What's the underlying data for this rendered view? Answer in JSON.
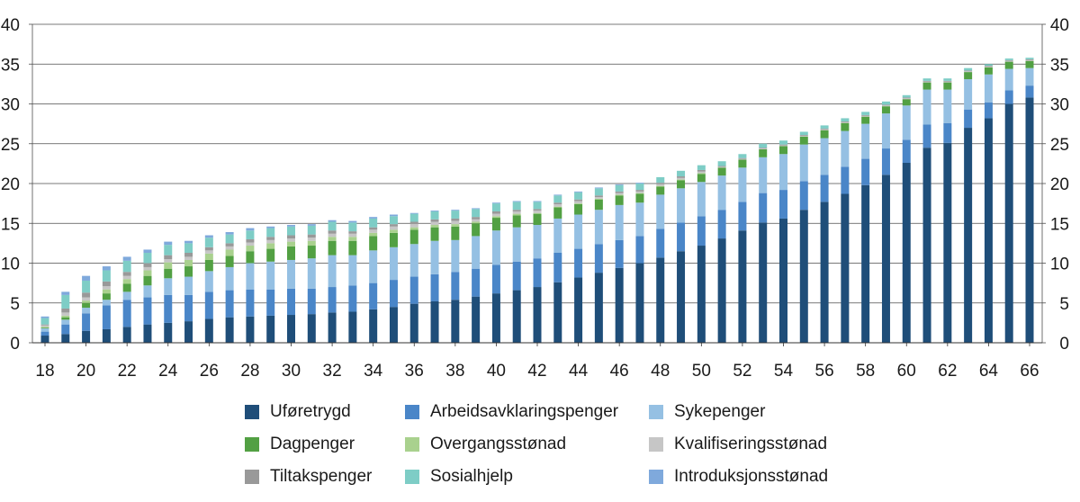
{
  "chart_data": {
    "type": "bar",
    "stacked": true,
    "x": [
      18,
      19,
      20,
      21,
      22,
      23,
      24,
      25,
      26,
      27,
      28,
      29,
      30,
      31,
      32,
      33,
      34,
      35,
      36,
      37,
      38,
      39,
      40,
      41,
      42,
      43,
      44,
      45,
      46,
      47,
      48,
      49,
      50,
      51,
      52,
      53,
      54,
      55,
      56,
      57,
      58,
      59,
      60,
      61,
      62,
      63,
      64,
      65,
      66
    ],
    "xticks": [
      "18",
      "20",
      "22",
      "24",
      "26",
      "28",
      "30",
      "32",
      "34",
      "36",
      "38",
      "40",
      "42",
      "44",
      "46",
      "48",
      "50",
      "52",
      "54",
      "56",
      "58",
      "60",
      "62",
      "64",
      "66"
    ],
    "yticks": [
      "0",
      "5",
      "10",
      "15",
      "20",
      "25",
      "30",
      "35",
      "40"
    ],
    "ylim": [
      0,
      40
    ],
    "grid": true,
    "legend_position": "bottom",
    "series": [
      {
        "name": "Uføretrygd",
        "color": "#1f4e79",
        "values": [
          0.9,
          1.1,
          1.5,
          1.7,
          2.0,
          2.3,
          2.5,
          2.7,
          3.0,
          3.2,
          3.3,
          3.4,
          3.5,
          3.6,
          3.8,
          3.9,
          4.2,
          4.5,
          4.9,
          5.2,
          5.4,
          5.8,
          6.2,
          6.6,
          7.0,
          7.6,
          8.2,
          8.8,
          9.4,
          10.0,
          10.7,
          11.5,
          12.2,
          13.1,
          14.1,
          15.1,
          15.6,
          16.7,
          17.7,
          18.7,
          19.8,
          21.1,
          22.6,
          24.5,
          25.1,
          27.0,
          28.2,
          30.0,
          30.8
        ]
      },
      {
        "name": "Arbeidsavklaringspenger",
        "color": "#4a86c8",
        "values": [
          0.5,
          1.2,
          2.2,
          3.0,
          3.4,
          3.4,
          3.5,
          3.3,
          3.4,
          3.4,
          3.4,
          3.3,
          3.3,
          3.2,
          3.2,
          3.3,
          3.3,
          3.4,
          3.4,
          3.4,
          3.5,
          3.5,
          3.6,
          3.6,
          3.6,
          3.7,
          3.6,
          3.6,
          3.5,
          3.4,
          3.6,
          3.6,
          3.7,
          3.6,
          3.6,
          3.7,
          3.6,
          3.6,
          3.4,
          3.4,
          3.3,
          3.3,
          2.9,
          2.9,
          2.5,
          2.3,
          2.0,
          1.7,
          1.5
        ]
      },
      {
        "name": "Sykepenger",
        "color": "#95c0e3",
        "values": [
          0.4,
          0.6,
          0.7,
          0.7,
          1.0,
          1.5,
          2.1,
          2.3,
          2.6,
          2.9,
          3.3,
          3.5,
          3.6,
          3.8,
          4.0,
          3.8,
          4.1,
          4.1,
          4.1,
          4.2,
          4.0,
          4.1,
          4.3,
          4.3,
          4.2,
          4.3,
          4.3,
          4.3,
          4.4,
          4.2,
          4.3,
          4.3,
          4.3,
          4.3,
          4.3,
          4.5,
          4.5,
          4.6,
          4.6,
          4.5,
          4.4,
          4.4,
          4.3,
          4.4,
          4.2,
          3.8,
          3.5,
          2.7,
          2.2
        ]
      },
      {
        "name": "Dagpenger",
        "color": "#52a043",
        "values": [
          0.1,
          0.3,
          0.6,
          0.8,
          1.0,
          1.2,
          1.2,
          1.3,
          1.4,
          1.4,
          1.5,
          1.6,
          1.7,
          1.6,
          1.8,
          1.8,
          1.8,
          1.8,
          1.8,
          1.7,
          1.7,
          1.6,
          1.6,
          1.5,
          1.4,
          1.4,
          1.3,
          1.3,
          1.2,
          1.1,
          1.0,
          1.0,
          1.0,
          1.0,
          1.0,
          1.0,
          1.0,
          1.0,
          1.0,
          1.0,
          0.9,
          0.9,
          0.8,
          0.9,
          0.9,
          0.9,
          0.9,
          0.9,
          0.9
        ]
      },
      {
        "name": "Overgangsstønad",
        "color": "#a9d18e",
        "values": [
          0.1,
          0.2,
          0.3,
          0.5,
          0.6,
          0.7,
          0.8,
          0.8,
          0.8,
          0.8,
          0.7,
          0.7,
          0.6,
          0.6,
          0.5,
          0.5,
          0.4,
          0.4,
          0.3,
          0.3,
          0.3,
          0.2,
          0.2,
          0.2,
          0.1,
          0.1,
          0.1,
          0.1,
          0.1,
          0.1,
          0.1,
          0.1,
          0.1,
          0,
          0,
          0,
          0,
          0,
          0,
          0,
          0,
          0,
          0,
          0,
          0,
          0,
          0,
          0,
          0
        ]
      },
      {
        "name": "Kvalifiseringsstønad",
        "color": "#c6c6c6",
        "values": [
          0.2,
          0.4,
          0.4,
          0.4,
          0.4,
          0.4,
          0.4,
          0.4,
          0.4,
          0.4,
          0.4,
          0.4,
          0.4,
          0.4,
          0.4,
          0.4,
          0.4,
          0.4,
          0.4,
          0.4,
          0.4,
          0.3,
          0.3,
          0.3,
          0.3,
          0.3,
          0.3,
          0.2,
          0.2,
          0.2,
          0.2,
          0.2,
          0.2,
          0.1,
          0.1,
          0.1,
          0.1,
          0.1,
          0.1,
          0.1,
          0.1,
          0.1,
          0.1,
          0.1,
          0.1,
          0.1,
          0.1,
          0.1,
          0.1
        ]
      },
      {
        "name": "Tiltakspenger",
        "color": "#999999",
        "values": [
          0.1,
          0.5,
          0.6,
          0.6,
          0.5,
          0.5,
          0.5,
          0.5,
          0.4,
          0.4,
          0.4,
          0.4,
          0.4,
          0.4,
          0.4,
          0.3,
          0.3,
          0.3,
          0.3,
          0.3,
          0.3,
          0.3,
          0.3,
          0.2,
          0.2,
          0.2,
          0.2,
          0.2,
          0.2,
          0.2,
          0.2,
          0.2,
          0.2,
          0.1,
          0.1,
          0.1,
          0.1,
          0.1,
          0.1,
          0.1,
          0.1,
          0.1,
          0.1,
          0.1,
          0.1,
          0.1,
          0.1,
          0.1,
          0.1
        ]
      },
      {
        "name": "Sosialhjelp",
        "color": "#7ecdc6",
        "values": [
          0.8,
          1.7,
          1.5,
          1.4,
          1.4,
          1.3,
          1.3,
          1.2,
          1.2,
          1.1,
          1.1,
          1.1,
          1.1,
          1.1,
          1.1,
          1.1,
          1.1,
          1.0,
          1.0,
          1.0,
          1.0,
          1.0,
          1.0,
          1.0,
          0.9,
          0.9,
          0.9,
          0.9,
          0.8,
          0.8,
          0.7,
          0.7,
          0.6,
          0.6,
          0.5,
          0.5,
          0.5,
          0.4,
          0.4,
          0.4,
          0.4,
          0.4,
          0.3,
          0.3,
          0.3,
          0.3,
          0.2,
          0.2,
          0.2
        ]
      },
      {
        "name": "Introduksjonsstønad",
        "color": "#7fa9dc",
        "values": [
          0.2,
          0.4,
          0.6,
          0.5,
          0.5,
          0.4,
          0.4,
          0.3,
          0.3,
          0.3,
          0.3,
          0.2,
          0.2,
          0.2,
          0.2,
          0.2,
          0.2,
          0.2,
          0.1,
          0.1,
          0.1,
          0.1,
          0.1,
          0.1,
          0.1,
          0.1,
          0.1,
          0.1,
          0.1,
          0.1,
          0,
          0,
          0,
          0,
          0,
          0,
          0,
          0,
          0,
          0,
          0,
          0,
          0,
          0,
          0,
          0,
          0,
          0,
          0
        ]
      }
    ]
  }
}
